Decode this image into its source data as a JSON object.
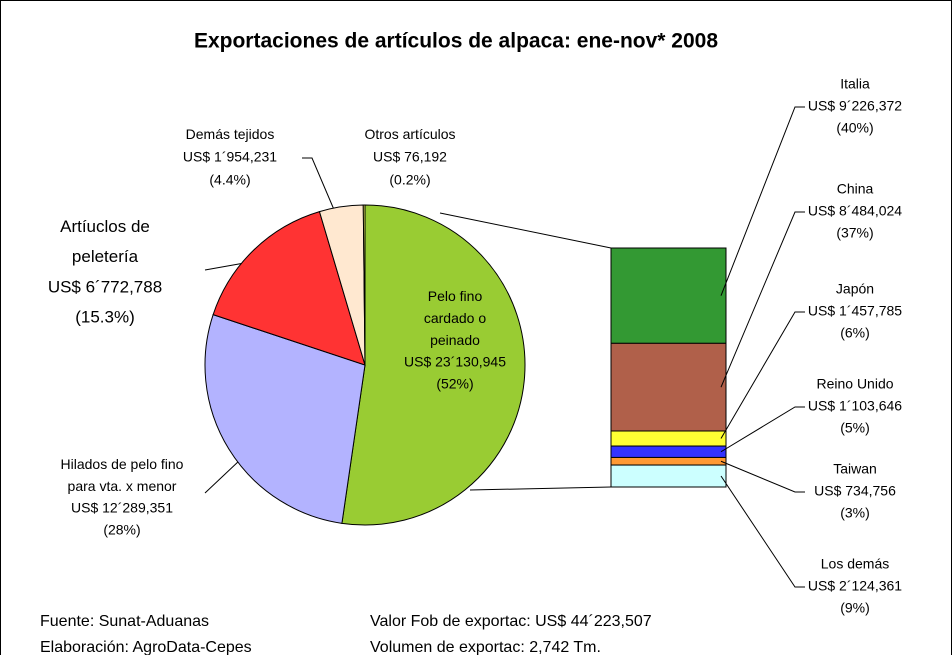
{
  "chart_data": [
    {
      "type": "pie",
      "title": "Exportaciones de artículos de alpaca: ene-nov* 2008",
      "categories": [
        "Pelo fino\ncardado o\npeinado",
        "Hilados de pelo fino\npara vta. x menor",
        "Artíuclos de\npeletería",
        "Demás tejidos",
        "Otros artículos"
      ],
      "values": [
        23130945,
        12289351,
        6772788,
        1954231,
        76192
      ],
      "value_labels": [
        "US$ 23´130,945",
        "US$ 12´289,351",
        "US$ 6´772,788",
        "US$ 1´954,231",
        "US$ 76,192"
      ],
      "percent_labels": [
        "(52%)",
        "(28%)",
        "(15.3%)",
        "(4.4%)",
        "(0.2%)"
      ],
      "colors": [
        "#99cc33",
        "#b3b3ff",
        "#ff3333",
        "#ffe8d0",
        "#ffff66"
      ]
    },
    {
      "type": "bar",
      "stacked": true,
      "categories": [
        "Italia",
        "China",
        "Japón",
        "Reino Unido",
        "Taiwan",
        "Los demás"
      ],
      "values": [
        9226372,
        8484024,
        1457785,
        1103646,
        734756,
        2124361
      ],
      "value_labels": [
        "US$ 9´226,372",
        "US$ 8´484,024",
        "US$ 1´457,785",
        "US$ 1´103,646",
        "US$ 734,756",
        "US$ 2´124,361"
      ],
      "percent_labels": [
        "(40%)",
        "(37%)",
        "(6%)",
        "(5%)",
        "(3%)",
        "(9%)"
      ],
      "colors": [
        "#339933",
        "#b0604a",
        "#ffff33",
        "#3333ff",
        "#ff9933",
        "#ccffff"
      ]
    }
  ],
  "notes": {
    "source": "Fuente: Sunat-Aduanas",
    "credit": "Elaboración: AgroData-Cepes",
    "fob": "Valor Fob de exportac: US$ 44´223,507",
    "volume": "Volumen de exportac: 2,742 Tm."
  }
}
